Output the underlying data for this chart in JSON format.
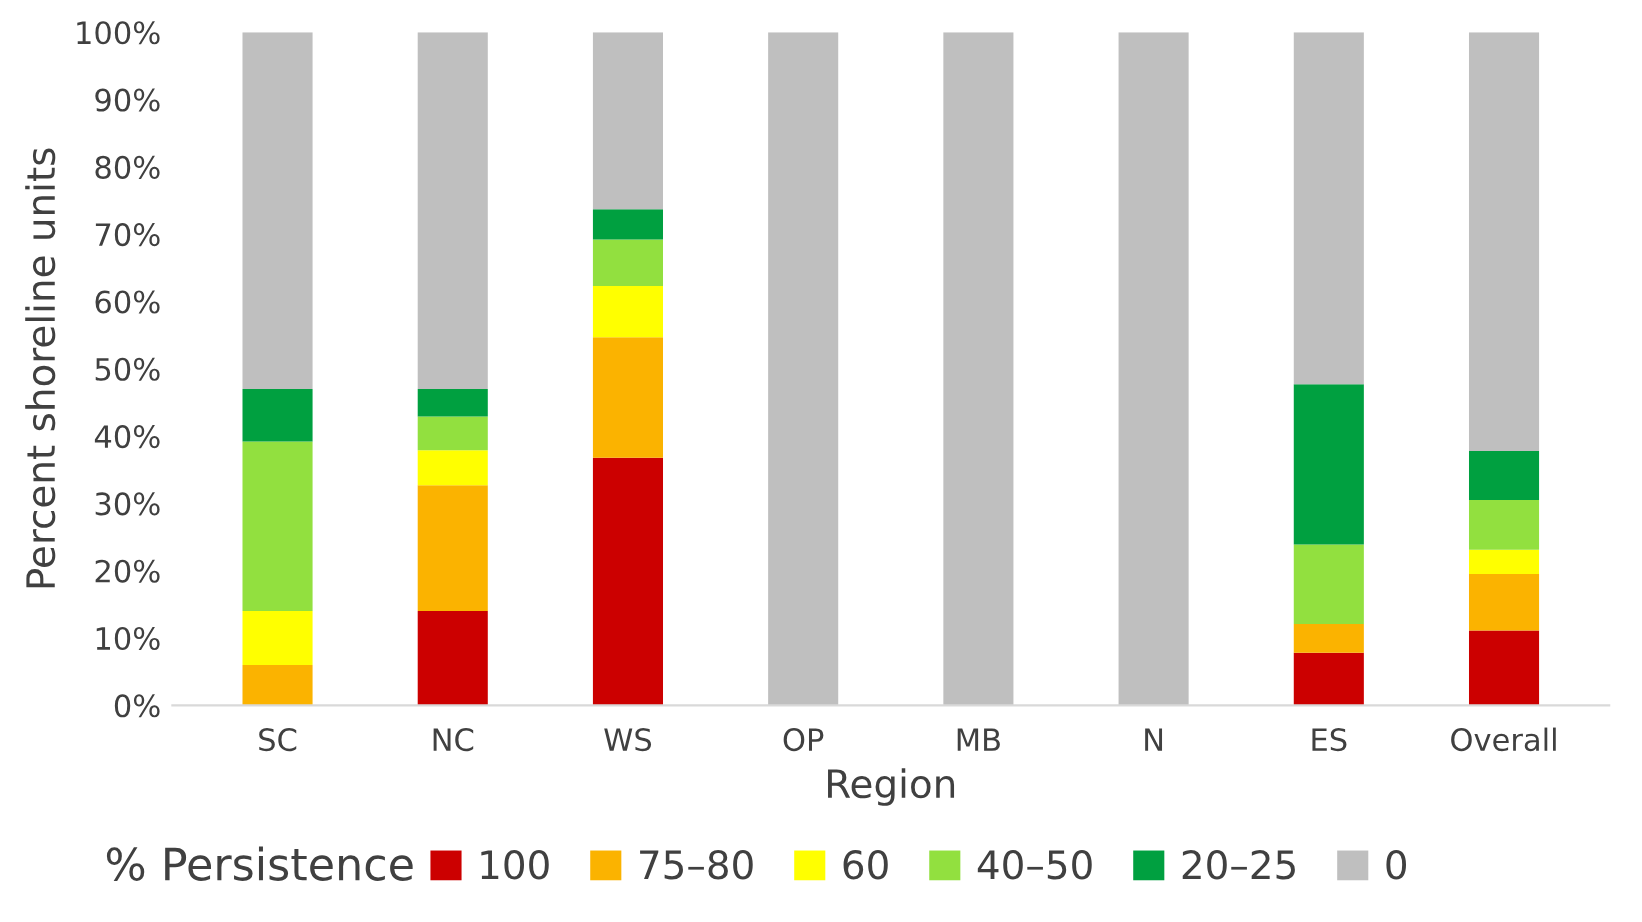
{
  "chart_data": {
    "type": "bar",
    "stacked": true,
    "xlabel": "Region",
    "ylabel": "Percent shoreline units",
    "legend_title": "% Persistence",
    "legend": "bottom",
    "grid": false,
    "categories": [
      "SC",
      "NC",
      "WS",
      "OP",
      "MB",
      "N",
      "ES",
      "Overall"
    ],
    "ylim": [
      0,
      100
    ],
    "yticks": [
      {
        "value": 0,
        "label": "0%"
      },
      {
        "value": 10,
        "label": "10%"
      },
      {
        "value": 20,
        "label": "20%"
      },
      {
        "value": 30,
        "label": "30%"
      },
      {
        "value": 40,
        "label": "40%"
      },
      {
        "value": 50,
        "label": "50%"
      },
      {
        "value": 60,
        "label": "60%"
      },
      {
        "value": 70,
        "label": "70%"
      },
      {
        "value": 80,
        "label": "80%"
      },
      {
        "value": 90,
        "label": "90%"
      },
      {
        "value": 100,
        "label": "100%"
      }
    ],
    "series": [
      {
        "name": "100",
        "color": "#cc0000",
        "values": [
          0,
          14,
          36.8,
          0,
          0,
          0,
          7.8,
          11.1
        ]
      },
      {
        "name": "75–80",
        "color": "#fbb300",
        "values": [
          6,
          18.7,
          17.9,
          0,
          0,
          0,
          4.3,
          8.4
        ]
      },
      {
        "name": "60",
        "color": "#ffff00",
        "values": [
          8,
          5.2,
          7.6,
          0,
          0,
          0,
          0,
          3.6
        ]
      },
      {
        "name": "40–50",
        "color": "#92e03f",
        "values": [
          25.2,
          5,
          6.9,
          0,
          0,
          0,
          11.8,
          7.4
        ]
      },
      {
        "name": "20–25",
        "color": "#00a040",
        "values": [
          7.8,
          4.1,
          4.5,
          0,
          0,
          0,
          23.8,
          7.3
        ]
      },
      {
        "name": "0",
        "color": "#bfbfbf",
        "values": [
          53,
          53,
          26.3,
          100,
          100,
          100,
          52.3,
          62.2
        ]
      }
    ]
  }
}
